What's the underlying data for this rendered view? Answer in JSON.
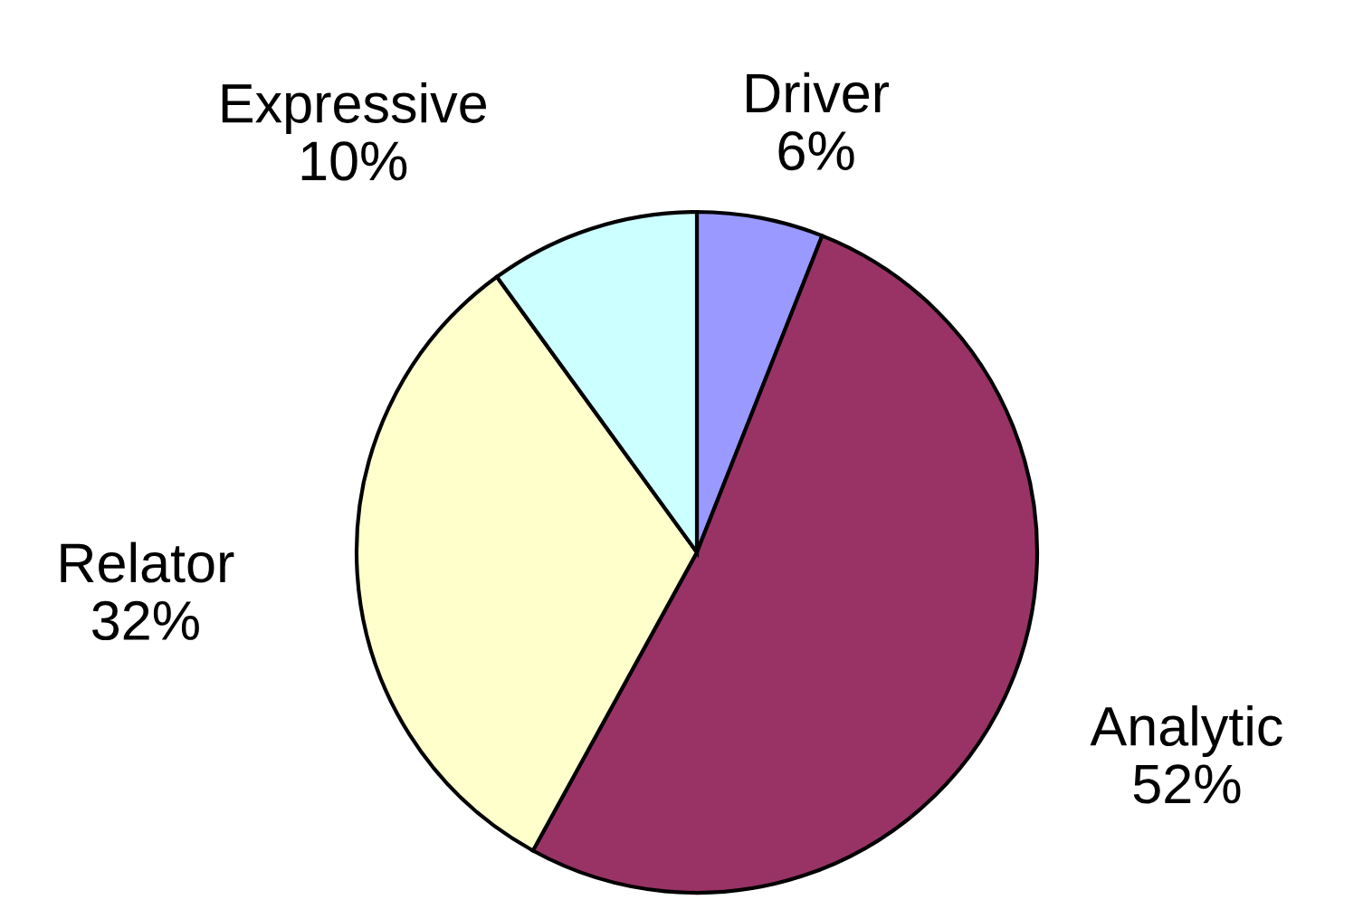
{
  "chart_data": {
    "type": "pie",
    "categories": [
      "Driver",
      "Analytic",
      "Relator",
      "Expressive"
    ],
    "values": [
      6,
      52,
      32,
      10
    ],
    "value_labels": [
      "6%",
      "52%",
      "32%",
      "10%"
    ],
    "colors": [
      "#9999ff",
      "#993366",
      "#ffffcc",
      "#ccffff"
    ],
    "legend": false
  }
}
